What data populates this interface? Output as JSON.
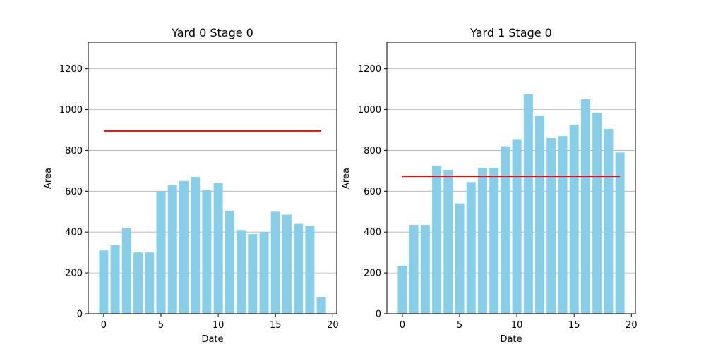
{
  "chart_data": [
    {
      "type": "bar",
      "title": "Yard 0 Stage 0",
      "xlabel": "Date",
      "ylabel": "Area",
      "x": [
        0,
        1,
        2,
        3,
        4,
        5,
        6,
        7,
        8,
        9,
        10,
        11,
        12,
        13,
        14,
        15,
        16,
        17,
        18,
        19
      ],
      "values": [
        310,
        335,
        420,
        300,
        300,
        600,
        630,
        650,
        670,
        605,
        640,
        505,
        410,
        390,
        400,
        500,
        485,
        440,
        430,
        80
      ],
      "xlim": [
        -1.35,
        20.35
      ],
      "ylim": [
        0,
        1330
      ],
      "xticks": [
        0,
        5,
        10,
        15,
        20
      ],
      "yticks": [
        0,
        200,
        400,
        600,
        800,
        1000,
        1200
      ],
      "grid": "y",
      "bar_color": "#87CEEB",
      "reference_line": {
        "value": 895,
        "x_range": [
          0,
          19
        ],
        "color": "#FF0000"
      }
    },
    {
      "type": "bar",
      "title": "Yard 1 Stage 0",
      "xlabel": "Date",
      "ylabel": "Area",
      "x": [
        0,
        1,
        2,
        3,
        4,
        5,
        6,
        7,
        8,
        9,
        10,
        11,
        12,
        13,
        14,
        15,
        16,
        17,
        18,
        19
      ],
      "values": [
        235,
        435,
        435,
        725,
        705,
        540,
        645,
        715,
        715,
        820,
        855,
        1075,
        970,
        860,
        870,
        925,
        1050,
        985,
        905,
        790
      ],
      "xlim": [
        -1.35,
        20.35
      ],
      "ylim": [
        0,
        1330
      ],
      "xticks": [
        0,
        5,
        10,
        15,
        20
      ],
      "yticks": [
        0,
        200,
        400,
        600,
        800,
        1000,
        1200
      ],
      "grid": "y",
      "bar_color": "#87CEEB",
      "reference_line": {
        "value": 673,
        "x_range": [
          0,
          19
        ],
        "color": "#FF0000"
      }
    }
  ]
}
